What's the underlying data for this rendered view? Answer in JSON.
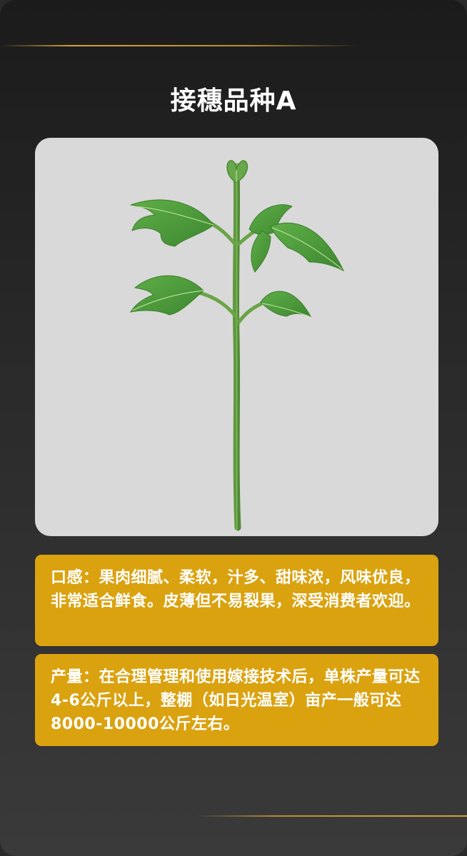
{
  "page": {
    "title": "接穗品种A"
  },
  "image": {
    "description_icon": "seedling-icon"
  },
  "cards": [
    {
      "text": "口感：果肉细腻、柔软，汁多、甜味浓，风味优良，非常适合鲜食。皮薄但不易裂果，深受消费者欢迎。"
    },
    {
      "text": "产量：在合理管理和使用嫁接技术后，单株产量可达4-6公斤以上，整棚（如日光温室）亩产一般可达8000-10000公斤左右。"
    }
  ],
  "colors": {
    "accent": "#dba210",
    "gold_line": "#d3a13a",
    "panel_bg": "#d9d9d9",
    "leaf": "#4f9a3c",
    "stem": "#6fa64a"
  }
}
